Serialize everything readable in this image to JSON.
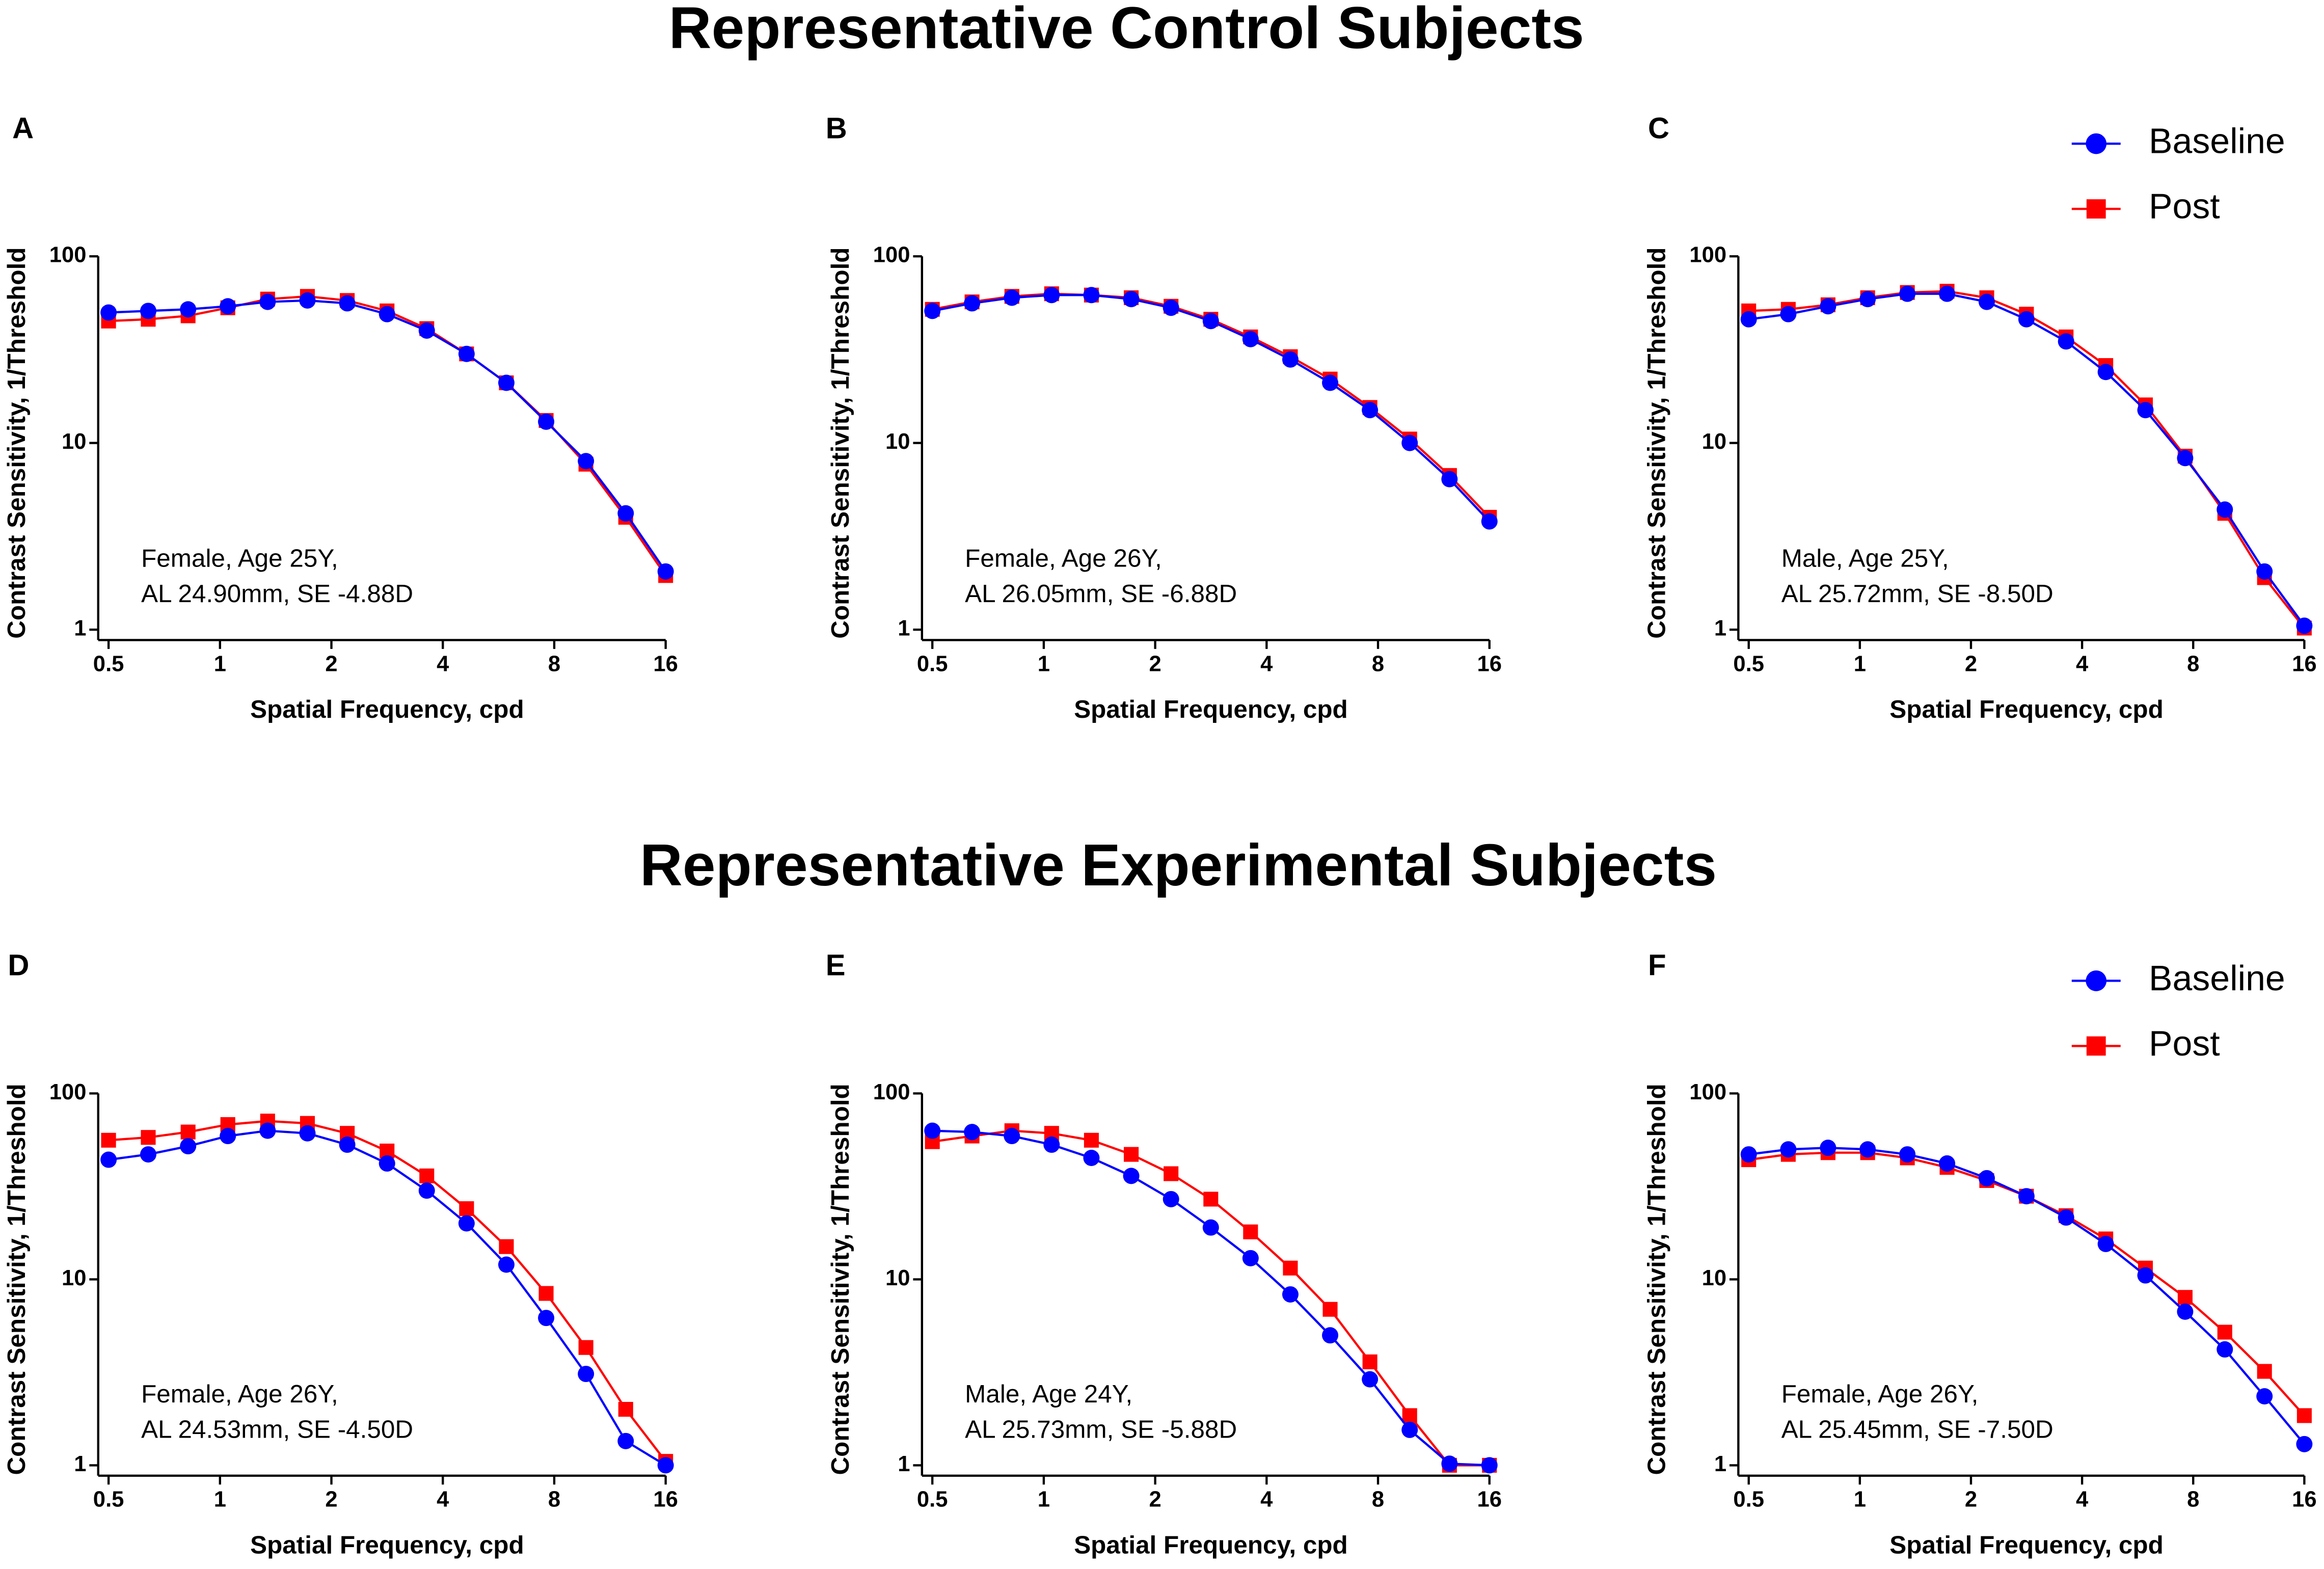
{
  "sections": [
    "Representative Control Subjects",
    "Representative Experimental Subjects"
  ],
  "chart_data": [
    {
      "type": "line",
      "panel": "A",
      "annotation": [
        "Female, Age 25Y,",
        "AL 24.90mm, SE -4.88D"
      ],
      "xlabel": "Spatial Frequency, cpd",
      "ylabel": "Contrast Sensitivity, 1/Threshold",
      "log_x": true,
      "log_y": true,
      "x": [
        0.5,
        0.64,
        0.82,
        1.05,
        1.345,
        1.723,
        2.207,
        2.827,
        3.62,
        4.637,
        5.939,
        7.607,
        9.743,
        12.48,
        16
      ],
      "series": [
        {
          "name": "Baseline",
          "color": "#0000ff",
          "marker": "circle",
          "values": [
            50,
            51,
            52,
            54,
            57,
            58,
            56,
            49,
            40,
            30,
            21,
            13,
            8,
            4.2,
            2.05
          ]
        },
        {
          "name": "Post",
          "color": "#ff0000",
          "marker": "square",
          "values": [
            45,
            46,
            48,
            53,
            59,
            61,
            58,
            51,
            41,
            30,
            21,
            13.2,
            7.7,
            4.0,
            1.95
          ]
        }
      ],
      "xlim": [
        0.5,
        16
      ],
      "xticks": [
        0.5,
        1,
        2,
        4,
        8,
        16
      ],
      "ylim": [
        1,
        100
      ],
      "yticks": [
        1,
        10,
        100
      ]
    },
    {
      "type": "line",
      "panel": "B",
      "annotation": [
        "Female, Age 26Y,",
        "AL 26.05mm, SE -6.88D"
      ],
      "xlabel": "Spatial Frequency, cpd",
      "ylabel": "Contrast Sensitivity, 1/Threshold",
      "log_x": true,
      "log_y": true,
      "x": [
        0.5,
        0.64,
        0.82,
        1.05,
        1.345,
        1.723,
        2.207,
        2.827,
        3.62,
        4.637,
        5.939,
        7.607,
        9.743,
        12.48,
        16
      ],
      "series": [
        {
          "name": "Baseline",
          "color": "#0000ff",
          "marker": "circle",
          "values": [
            51,
            56,
            60,
            62,
            62,
            59,
            53,
            45,
            36,
            28,
            21,
            15,
            10,
            6.4,
            3.8
          ]
        },
        {
          "name": "Post",
          "color": "#ff0000",
          "marker": "square",
          "values": [
            52,
            57,
            61,
            63,
            62,
            60,
            54,
            46,
            37,
            29,
            22,
            15.5,
            10.5,
            6.7,
            4.0
          ]
        }
      ],
      "xlim": [
        0.5,
        16
      ],
      "xticks": [
        0.5,
        1,
        2,
        4,
        8,
        16
      ],
      "ylim": [
        1,
        100
      ],
      "yticks": [
        1,
        10,
        100
      ]
    },
    {
      "type": "line",
      "panel": "C",
      "annotation": [
        "Male, Age 25Y,",
        "AL 25.72mm, SE -8.50D"
      ],
      "xlabel": "Spatial Frequency, cpd",
      "ylabel": "Contrast Sensitivity, 1/Threshold",
      "log_x": true,
      "log_y": true,
      "legend": "upper right",
      "x": [
        0.5,
        0.64,
        0.82,
        1.05,
        1.345,
        1.723,
        2.207,
        2.827,
        3.62,
        4.637,
        5.939,
        7.607,
        9.743,
        12.48,
        16
      ],
      "series": [
        {
          "name": "Baseline",
          "color": "#0000ff",
          "marker": "circle",
          "values": [
            46,
            49,
            54,
            59,
            63,
            63,
            57,
            46,
            35,
            24,
            15,
            8.3,
            4.4,
            2.05,
            1.05
          ]
        },
        {
          "name": "Post",
          "color": "#ff0000",
          "marker": "square",
          "values": [
            51,
            52,
            55,
            60,
            64,
            65,
            60,
            49,
            37,
            26,
            16,
            8.5,
            4.2,
            1.9,
            1.02
          ]
        }
      ],
      "xlim": [
        0.5,
        16
      ],
      "xticks": [
        0.5,
        1,
        2,
        4,
        8,
        16
      ],
      "ylim": [
        1,
        100
      ],
      "yticks": [
        1,
        10,
        100
      ]
    },
    {
      "type": "line",
      "panel": "D",
      "annotation": [
        "Female, Age 26Y,",
        "AL 24.53mm, SE -4.50D"
      ],
      "xlabel": "Spatial Frequency, cpd",
      "ylabel": "Contrast Sensitivity, 1/Threshold",
      "log_x": true,
      "log_y": true,
      "x": [
        0.5,
        0.64,
        0.82,
        1.05,
        1.345,
        1.723,
        2.207,
        2.827,
        3.62,
        4.637,
        5.939,
        7.607,
        9.743,
        12.48,
        16
      ],
      "series": [
        {
          "name": "Baseline",
          "color": "#0000ff",
          "marker": "circle",
          "values": [
            44,
            47,
            52,
            59,
            63,
            61,
            53,
            42,
            30,
            20,
            12,
            6.2,
            3.1,
            1.35,
            1.0
          ]
        },
        {
          "name": "Post",
          "color": "#ff0000",
          "marker": "square",
          "values": [
            56,
            58,
            62,
            68,
            71,
            69,
            61,
            49,
            36,
            24,
            15,
            8.4,
            4.3,
            2.0,
            1.05
          ]
        }
      ],
      "xlim": [
        0.5,
        16
      ],
      "xticks": [
        0.5,
        1,
        2,
        4,
        8,
        16
      ],
      "ylim": [
        1,
        100
      ],
      "yticks": [
        1,
        10,
        100
      ]
    },
    {
      "type": "line",
      "panel": "E",
      "annotation": [
        "Male, Age 24Y,",
        "AL 25.73mm, SE -5.88D"
      ],
      "xlabel": "Spatial Frequency, cpd",
      "ylabel": "Contrast Sensitivity, 1/Threshold",
      "log_x": true,
      "log_y": true,
      "x": [
        0.5,
        0.64,
        0.82,
        1.05,
        1.345,
        1.723,
        2.207,
        2.827,
        3.62,
        4.637,
        5.939,
        7.607,
        9.743,
        12.48,
        16
      ],
      "series": [
        {
          "name": "Baseline",
          "color": "#0000ff",
          "marker": "circle",
          "values": [
            63,
            62,
            59,
            53,
            45,
            36,
            27,
            19,
            13,
            8.3,
            5.0,
            2.9,
            1.55,
            1.02,
            1.0
          ]
        },
        {
          "name": "Post",
          "color": "#ff0000",
          "marker": "square",
          "values": [
            55,
            59,
            63,
            61,
            56,
            47,
            37,
            27,
            18,
            11.5,
            6.9,
            3.6,
            1.85,
            1.0,
            1.0
          ]
        }
      ],
      "xlim": [
        0.5,
        16
      ],
      "xticks": [
        0.5,
        1,
        2,
        4,
        8,
        16
      ],
      "ylim": [
        1,
        100
      ],
      "yticks": [
        1,
        10,
        100
      ]
    },
    {
      "type": "line",
      "panel": "F",
      "annotation": [
        "Female, Age 26Y,",
        "AL 25.45mm, SE -7.50D"
      ],
      "xlabel": "Spatial Frequency, cpd",
      "ylabel": "Contrast Sensitivity, 1/Threshold",
      "log_x": true,
      "log_y": true,
      "legend": "upper right",
      "x": [
        0.5,
        0.64,
        0.82,
        1.05,
        1.345,
        1.723,
        2.207,
        2.827,
        3.62,
        4.637,
        5.939,
        7.607,
        9.743,
        12.48,
        16
      ],
      "series": [
        {
          "name": "Baseline",
          "color": "#0000ff",
          "marker": "circle",
          "values": [
            47,
            50,
            51,
            50,
            47,
            42,
            35,
            28,
            21.5,
            15.5,
            10.5,
            6.7,
            4.2,
            2.35,
            1.3
          ]
        },
        {
          "name": "Post",
          "color": "#ff0000",
          "marker": "square",
          "values": [
            44,
            47,
            48,
            48,
            45,
            40,
            34,
            28,
            22,
            16.5,
            11.5,
            8,
            5.2,
            3.2,
            1.85
          ]
        }
      ],
      "xlim": [
        0.5,
        16
      ],
      "xticks": [
        0.5,
        1,
        2,
        4,
        8,
        16
      ],
      "ylim": [
        1,
        100
      ],
      "yticks": [
        1,
        10,
        100
      ]
    }
  ]
}
